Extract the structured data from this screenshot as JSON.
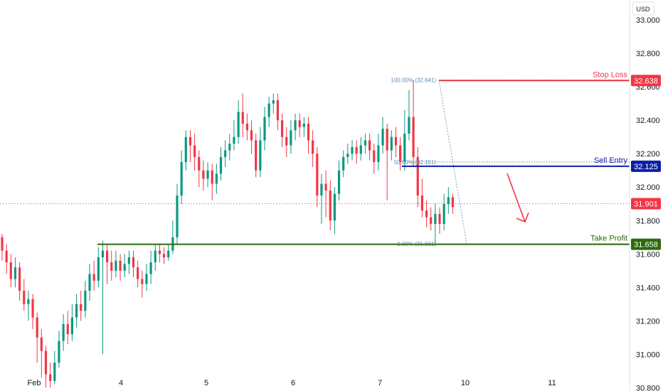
{
  "currency_label": "USD",
  "chart_data": {
    "type": "candlestick",
    "y_axis": {
      "range": [
        30.78,
        33.12
      ],
      "ticks": [
        "33.000",
        "32.800",
        "32.600",
        "32.400",
        "32.200",
        "32.000",
        "31.800",
        "31.600",
        "31.400",
        "31.200",
        "31.000",
        "30.800"
      ]
    },
    "x_axis": {
      "ticks": [
        "Feb",
        "4",
        "5",
        "6",
        "7",
        "10",
        "11"
      ]
    },
    "levels": [
      {
        "name": "Stop Loss",
        "price": 32.638,
        "badge": "32.638",
        "color": "#f23645"
      },
      {
        "name": "Sell Entry",
        "price": 32.125,
        "badge": "32.125",
        "color": "#0d1fa6"
      },
      {
        "name": "Take Profit",
        "price": 31.658,
        "badge": "31.658",
        "color": "#2d6a0c"
      }
    ],
    "current_price": {
      "price": 31.901,
      "badge": "31.901",
      "color": "#f23645"
    },
    "fibonacci": [
      {
        "label": "100.00% (32.641)",
        "price": 32.641
      },
      {
        "label": "50.00% (32.151)",
        "price": 32.151
      },
      {
        "label": "0.00% (31.661)",
        "price": 31.661
      }
    ],
    "candles": [
      [
        31.7,
        31.62,
        31.72,
        31.56
      ],
      [
        31.62,
        31.55,
        31.66,
        31.48
      ],
      [
        31.55,
        31.45,
        31.6,
        31.4
      ],
      [
        31.45,
        31.52,
        31.58,
        31.4
      ],
      [
        31.52,
        31.38,
        31.55,
        31.32
      ],
      [
        31.38,
        31.3,
        31.45,
        31.26
      ],
      [
        31.3,
        31.33,
        31.38,
        31.2
      ],
      [
        31.33,
        31.22,
        31.36,
        31.15
      ],
      [
        31.22,
        31.1,
        31.25,
        30.95
      ],
      [
        31.1,
        31.02,
        31.15,
        30.86
      ],
      [
        31.02,
        30.88,
        31.05,
        30.8
      ],
      [
        30.88,
        30.84,
        30.95,
        30.8
      ],
      [
        30.84,
        30.95,
        31.02,
        30.82
      ],
      [
        30.95,
        31.08,
        31.14,
        30.92
      ],
      [
        31.08,
        31.18,
        31.24,
        31.02
      ],
      [
        31.18,
        31.12,
        31.26,
        31.06
      ],
      [
        31.12,
        31.22,
        31.3,
        31.08
      ],
      [
        31.22,
        31.3,
        31.36,
        31.16
      ],
      [
        31.3,
        31.26,
        31.38,
        31.2
      ],
      [
        31.26,
        31.38,
        31.44,
        31.22
      ],
      [
        31.38,
        31.48,
        31.54,
        31.32
      ],
      [
        31.48,
        31.44,
        31.56,
        31.38
      ],
      [
        31.44,
        31.58,
        31.64,
        31.4
      ],
      [
        31.58,
        31.62,
        31.68,
        31.0
      ],
      [
        31.62,
        31.55,
        31.66,
        31.42
      ],
      [
        31.55,
        31.5,
        31.62,
        31.44
      ],
      [
        31.5,
        31.56,
        31.62,
        31.46
      ],
      [
        31.56,
        31.5,
        31.6,
        31.44
      ],
      [
        31.5,
        31.54,
        31.6,
        31.46
      ],
      [
        31.54,
        31.58,
        31.62,
        31.48
      ],
      [
        31.58,
        31.52,
        31.62,
        31.46
      ],
      [
        31.52,
        31.45,
        31.56,
        31.4
      ],
      [
        31.45,
        31.42,
        31.5,
        31.34
      ],
      [
        31.42,
        31.48,
        31.54,
        31.38
      ],
      [
        31.48,
        31.55,
        31.62,
        31.42
      ],
      [
        31.55,
        31.62,
        31.66,
        31.5
      ],
      [
        31.62,
        31.6,
        31.66,
        31.55
      ],
      [
        31.6,
        31.58,
        31.64,
        31.54
      ],
      [
        31.58,
        31.62,
        31.66,
        31.56
      ],
      [
        31.62,
        31.7,
        31.8,
        31.6
      ],
      [
        31.7,
        31.95,
        32.02,
        31.66
      ],
      [
        31.95,
        32.15,
        32.22,
        31.9
      ],
      [
        32.15,
        32.3,
        32.34,
        32.1
      ],
      [
        32.3,
        32.25,
        32.34,
        32.15
      ],
      [
        32.25,
        32.18,
        32.32,
        32.1
      ],
      [
        32.18,
        32.1,
        32.22,
        32.0
      ],
      [
        32.1,
        32.05,
        32.16,
        31.98
      ],
      [
        32.05,
        32.1,
        32.15,
        32.0
      ],
      [
        32.1,
        32.02,
        32.14,
        31.92
      ],
      [
        32.02,
        32.08,
        32.14,
        31.96
      ],
      [
        32.08,
        32.18,
        32.24,
        32.04
      ],
      [
        32.18,
        32.22,
        32.28,
        32.12
      ],
      [
        32.22,
        32.26,
        32.32,
        32.16
      ],
      [
        32.26,
        32.3,
        32.4,
        32.22
      ],
      [
        32.3,
        32.45,
        32.52,
        32.26
      ],
      [
        32.45,
        32.38,
        32.56,
        32.3
      ],
      [
        32.38,
        32.34,
        32.44,
        32.28
      ],
      [
        32.34,
        32.28,
        32.4,
        32.2
      ],
      [
        32.28,
        32.1,
        32.32,
        32.06
      ],
      [
        32.1,
        32.28,
        32.36,
        32.06
      ],
      [
        32.28,
        32.42,
        32.48,
        32.22
      ],
      [
        32.42,
        32.5,
        32.54,
        32.36
      ],
      [
        32.5,
        32.52,
        32.56,
        32.44
      ],
      [
        32.52,
        32.4,
        32.56,
        32.34
      ],
      [
        32.4,
        32.3,
        32.44,
        32.24
      ],
      [
        32.3,
        32.25,
        32.36,
        32.18
      ],
      [
        32.25,
        32.34,
        32.4,
        32.2
      ],
      [
        32.34,
        32.4,
        32.44,
        32.28
      ],
      [
        32.4,
        32.36,
        32.44,
        32.3
      ],
      [
        32.36,
        32.38,
        32.42,
        32.3
      ],
      [
        32.38,
        32.28,
        32.42,
        32.2
      ],
      [
        32.28,
        32.2,
        32.34,
        32.12
      ],
      [
        32.2,
        31.95,
        32.24,
        31.88
      ],
      [
        31.95,
        32.02,
        32.08,
        31.78
      ],
      [
        32.02,
        31.98,
        32.1,
        31.82
      ],
      [
        31.98,
        31.8,
        32.04,
        31.74
      ],
      [
        31.8,
        31.96,
        32.0,
        31.72
      ],
      [
        31.96,
        32.1,
        32.16,
        31.92
      ],
      [
        32.1,
        32.18,
        32.22,
        32.06
      ],
      [
        32.18,
        32.2,
        32.26,
        32.14
      ],
      [
        32.2,
        32.24,
        32.28,
        32.16
      ],
      [
        32.24,
        32.2,
        32.28,
        32.14
      ],
      [
        32.2,
        32.25,
        32.3,
        32.16
      ],
      [
        32.25,
        32.28,
        32.32,
        32.2
      ],
      [
        32.28,
        32.22,
        32.32,
        32.16
      ],
      [
        32.22,
        32.15,
        32.26,
        32.08
      ],
      [
        32.15,
        32.25,
        32.32,
        32.1
      ],
      [
        32.25,
        32.35,
        32.42,
        32.2
      ],
      [
        32.35,
        32.22,
        32.38,
        31.92
      ],
      [
        32.22,
        32.3,
        32.34,
        32.16
      ],
      [
        32.3,
        32.25,
        32.36,
        32.18
      ],
      [
        32.25,
        32.15,
        32.3,
        32.1
      ],
      [
        32.15,
        32.32,
        32.46,
        32.1
      ],
      [
        32.32,
        32.42,
        32.58,
        32.28
      ],
      [
        32.42,
        32.18,
        32.64,
        32.12
      ],
      [
        32.18,
        31.95,
        32.24,
        31.88
      ],
      [
        31.95,
        31.86,
        32.05,
        31.82
      ],
      [
        31.86,
        31.82,
        31.92,
        31.76
      ],
      [
        31.82,
        31.78,
        31.88,
        31.74
      ],
      [
        31.78,
        31.84,
        31.9,
        31.66
      ],
      [
        31.84,
        31.78,
        31.88,
        31.72
      ],
      [
        31.78,
        31.9,
        31.96,
        31.74
      ],
      [
        31.9,
        31.94,
        32.0,
        31.84
      ],
      [
        31.94,
        31.88,
        31.96,
        31.84
      ]
    ]
  }
}
